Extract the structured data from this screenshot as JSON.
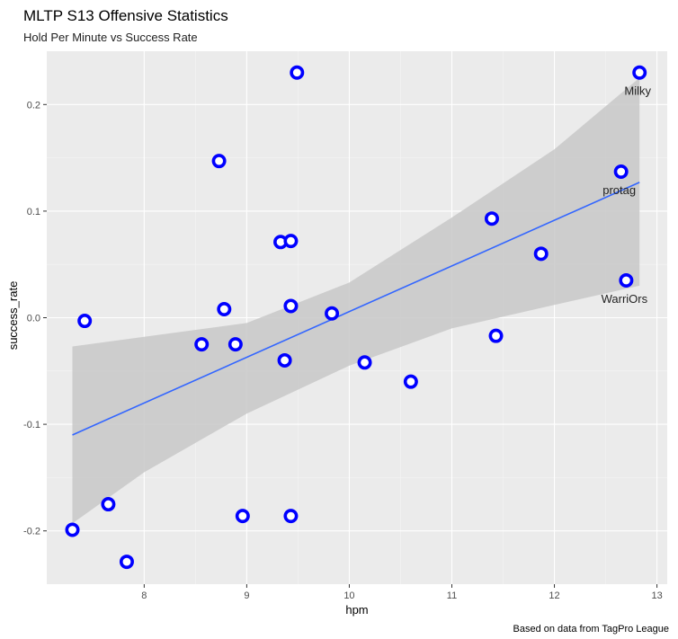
{
  "chart_data": {
    "type": "scatter",
    "title": "MLTP S13 Offensive Statistics",
    "subtitle": "Hold Per Minute vs Success Rate",
    "xlabel": "hpm",
    "ylabel": "success_rate",
    "caption": "Based on data from TagPro League",
    "xlim": [
      7.05,
      13.1
    ],
    "ylim": [
      -0.25,
      0.25
    ],
    "x_ticks": [
      8,
      9,
      10,
      11,
      12,
      13
    ],
    "y_ticks": [
      -0.2,
      -0.1,
      0.0,
      0.1,
      0.2
    ],
    "x_tick_labels": [
      "8",
      "9",
      "10",
      "11",
      "12",
      "13"
    ],
    "y_tick_labels": [
      "-0.2",
      "-0.1",
      "0.0",
      "0.1",
      "0.2"
    ],
    "grid": true,
    "points": [
      {
        "x": 7.3,
        "y": -0.199,
        "label": ""
      },
      {
        "x": 7.42,
        "y": -0.003,
        "label": ""
      },
      {
        "x": 7.65,
        "y": -0.175,
        "label": ""
      },
      {
        "x": 7.83,
        "y": -0.229,
        "label": ""
      },
      {
        "x": 8.56,
        "y": -0.025,
        "label": ""
      },
      {
        "x": 8.73,
        "y": 0.147,
        "label": ""
      },
      {
        "x": 8.78,
        "y": 0.008,
        "label": ""
      },
      {
        "x": 8.89,
        "y": -0.025,
        "label": ""
      },
      {
        "x": 8.96,
        "y": -0.186,
        "label": ""
      },
      {
        "x": 9.33,
        "y": 0.071,
        "label": ""
      },
      {
        "x": 9.37,
        "y": -0.04,
        "label": ""
      },
      {
        "x": 9.43,
        "y": 0.072,
        "label": ""
      },
      {
        "x": 9.43,
        "y": 0.011,
        "label": ""
      },
      {
        "x": 9.43,
        "y": -0.186,
        "label": ""
      },
      {
        "x": 9.49,
        "y": 0.23,
        "label": ""
      },
      {
        "x": 9.83,
        "y": 0.004,
        "label": ""
      },
      {
        "x": 10.15,
        "y": -0.042,
        "label": ""
      },
      {
        "x": 10.6,
        "y": -0.06,
        "label": ""
      },
      {
        "x": 11.39,
        "y": 0.093,
        "label": ""
      },
      {
        "x": 11.43,
        "y": -0.017,
        "label": ""
      },
      {
        "x": 11.87,
        "y": 0.06,
        "label": ""
      },
      {
        "x": 12.65,
        "y": 0.137,
        "label": "protag"
      },
      {
        "x": 12.7,
        "y": 0.035,
        "label": "WarriOrs"
      },
      {
        "x": 12.83,
        "y": 0.23,
        "label": "Milky"
      }
    ],
    "trend": {
      "type": "linear",
      "x": [
        7.3,
        12.83
      ],
      "y": [
        -0.11,
        0.127
      ],
      "ci_x": [
        7.3,
        8.0,
        9.0,
        10.0,
        11.0,
        12.0,
        12.83
      ],
      "ci_lower": [
        -0.193,
        -0.145,
        -0.09,
        -0.045,
        -0.01,
        0.012,
        0.03
      ],
      "ci_upper": [
        -0.027,
        -0.018,
        -0.005,
        0.033,
        0.094,
        0.158,
        0.225
      ]
    },
    "colors": {
      "panel": "#ebebeb",
      "grid_major": "#ffffff",
      "grid_minor": "#f5f5f5",
      "point_stroke": "#0000ff",
      "point_fill": "#ffffff",
      "trend_line": "#3366ff",
      "ci_band": "#c8c8c8"
    }
  }
}
